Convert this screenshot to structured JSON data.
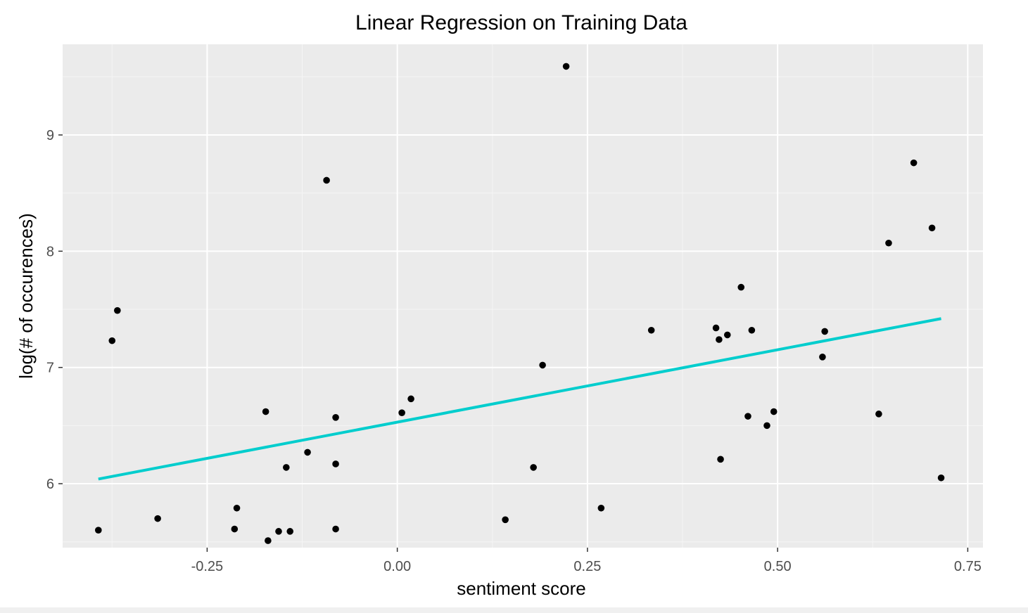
{
  "chart_data": {
    "type": "scatter",
    "title": "Linear Regression on Training Data",
    "xlabel": "sentiment score",
    "ylabel": "log(# of occurences)",
    "xlim": [
      -0.44,
      0.77
    ],
    "ylim": [
      5.45,
      9.78
    ],
    "x_ticks": [
      {
        "value": -0.25,
        "label": "-0.25"
      },
      {
        "value": 0.0,
        "label": "0.00"
      },
      {
        "value": 0.25,
        "label": "0.25"
      },
      {
        "value": 0.5,
        "label": "0.50"
      },
      {
        "value": 0.75,
        "label": "0.75"
      }
    ],
    "y_ticks": [
      {
        "value": 6,
        "label": "6"
      },
      {
        "value": 7,
        "label": "7"
      },
      {
        "value": 8,
        "label": "8"
      },
      {
        "value": 9,
        "label": "9"
      }
    ],
    "grid": true,
    "series": [
      {
        "kind": "points",
        "color": "#000000",
        "points": [
          {
            "x": -0.393,
            "y": 5.6
          },
          {
            "x": -0.375,
            "y": 7.23
          },
          {
            "x": -0.368,
            "y": 7.49
          },
          {
            "x": -0.315,
            "y": 5.7
          },
          {
            "x": -0.214,
            "y": 5.61
          },
          {
            "x": -0.211,
            "y": 5.79
          },
          {
            "x": -0.173,
            "y": 6.62
          },
          {
            "x": -0.17,
            "y": 5.51
          },
          {
            "x": -0.156,
            "y": 5.59
          },
          {
            "x": -0.146,
            "y": 6.14
          },
          {
            "x": -0.141,
            "y": 5.59
          },
          {
            "x": -0.118,
            "y": 6.27
          },
          {
            "x": -0.093,
            "y": 8.61
          },
          {
            "x": -0.081,
            "y": 6.57
          },
          {
            "x": -0.081,
            "y": 6.17
          },
          {
            "x": -0.081,
            "y": 5.61
          },
          {
            "x": 0.006,
            "y": 6.61
          },
          {
            "x": 0.018,
            "y": 6.73
          },
          {
            "x": 0.142,
            "y": 5.69
          },
          {
            "x": 0.179,
            "y": 6.14
          },
          {
            "x": 0.191,
            "y": 7.02
          },
          {
            "x": 0.222,
            "y": 9.59
          },
          {
            "x": 0.268,
            "y": 5.79
          },
          {
            "x": 0.334,
            "y": 7.32
          },
          {
            "x": 0.419,
            "y": 7.34
          },
          {
            "x": 0.423,
            "y": 7.24
          },
          {
            "x": 0.425,
            "y": 6.21
          },
          {
            "x": 0.434,
            "y": 7.28
          },
          {
            "x": 0.452,
            "y": 7.69
          },
          {
            "x": 0.461,
            "y": 6.58
          },
          {
            "x": 0.466,
            "y": 7.32
          },
          {
            "x": 0.486,
            "y": 6.5
          },
          {
            "x": 0.495,
            "y": 6.62
          },
          {
            "x": 0.559,
            "y": 7.09
          },
          {
            "x": 0.562,
            "y": 7.31
          },
          {
            "x": 0.633,
            "y": 6.6
          },
          {
            "x": 0.646,
            "y": 8.07
          },
          {
            "x": 0.679,
            "y": 8.76
          },
          {
            "x": 0.703,
            "y": 8.2
          },
          {
            "x": 0.715,
            "y": 6.05
          }
        ]
      },
      {
        "kind": "line",
        "color": "#00cdcd",
        "points": [
          {
            "x": -0.393,
            "y": 6.04
          },
          {
            "x": 0.715,
            "y": 7.42
          }
        ]
      }
    ]
  },
  "colors": {
    "panel_background": "#ebebeb",
    "grid_major": "#ffffff",
    "grid_minor": "#f5f5f5",
    "tick_label": "#4d4d4d",
    "regression_line": "#00cdcd",
    "point": "#000000"
  }
}
